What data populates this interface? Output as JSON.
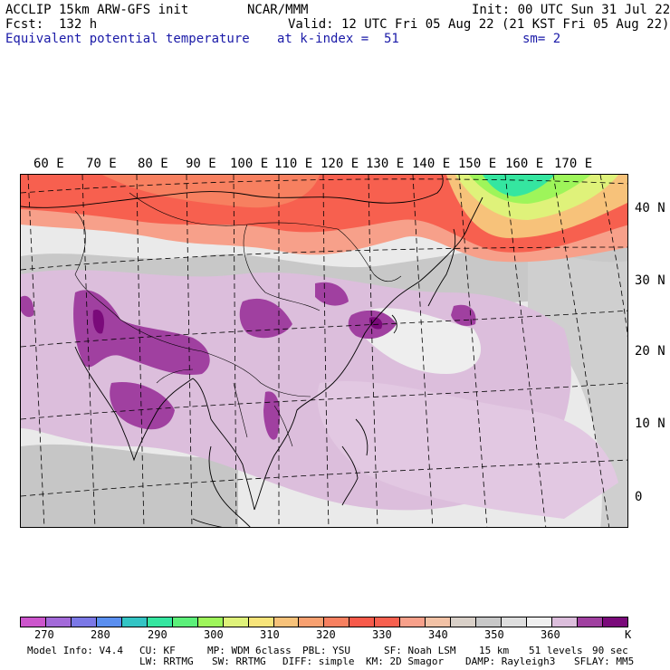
{
  "header": {
    "model": "ACCLIP 15km ARW-GFS init",
    "center": "NCAR/MMM",
    "init": "Init: 00 UTC Sun 31 Jul 22",
    "fcst": "Fcst:  132 h",
    "valid": "Valid: 12 UTC Fri 05 Aug 22 (21 KST Fri 05 Aug 22)",
    "field": "Equivalent potential temperature",
    "level": "at k-index =  51",
    "smooth": "sm= 2"
  },
  "map": {
    "lon_labels": [
      "60 E",
      "70 E",
      "80 E",
      "90 E",
      "100 E",
      "110 E",
      "120 E",
      "130 E",
      "140 E",
      "150 E",
      "160 E",
      "170 E"
    ],
    "lat_labels": [
      "40 N",
      "30 N",
      "20 N",
      "10 N",
      "0"
    ]
  },
  "colorbar": {
    "colors": [
      "#cc55cc",
      "#a36ad9",
      "#7b78e6",
      "#5a8ff0",
      "#33c4c4",
      "#35e6a0",
      "#5cf07a",
      "#9ef55a",
      "#dff27a",
      "#f7e47a",
      "#f7c27a",
      "#f7a070",
      "#f78060",
      "#f75a4a",
      "#f7604f",
      "#f7a08a",
      "#f2c2a6",
      "#d9d0c8",
      "#c8c8c8",
      "#dedede",
      "#f0f0f0",
      "#dcbedc",
      "#a040a0",
      "#7a0a7a"
    ],
    "tick_labels": [
      "270",
      "280",
      "290",
      "300",
      "310",
      "320",
      "330",
      "340",
      "350",
      "360"
    ],
    "unit": "K"
  },
  "footer": {
    "line1": [
      "Model Info: V4.4",
      "CU: KF",
      "MP: WDM 6class",
      "PBL: YSU",
      "SF: Noah LSM",
      "15 km",
      "51 levels",
      "90 sec"
    ],
    "line2": [
      "LW: RRTMG",
      "SW: RRTMG",
      "DIFF: simple",
      "KM: 2D Smagor",
      "DAMP: Rayleigh3",
      "SFLAY: MM5"
    ]
  }
}
